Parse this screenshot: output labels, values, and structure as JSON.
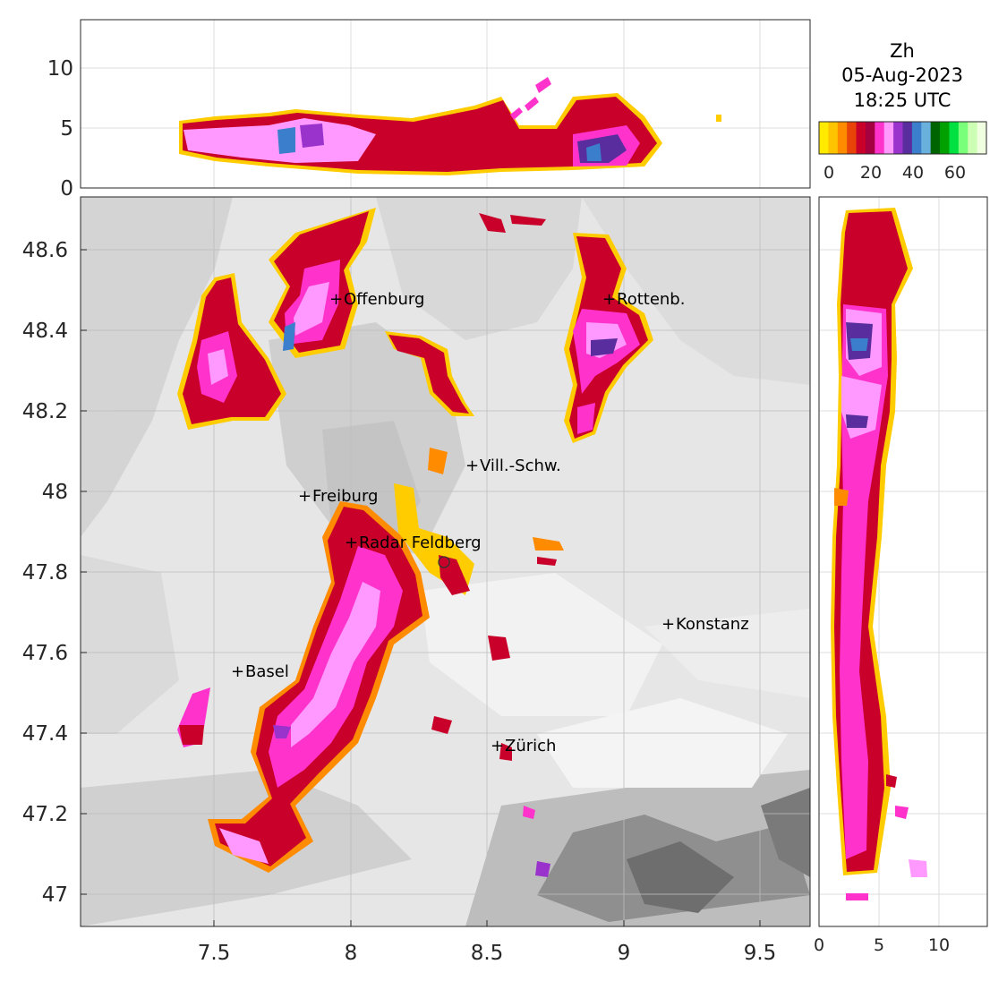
{
  "title": {
    "variable": "Zh",
    "date": "05-Aug-2023",
    "time": "18:25 UTC"
  },
  "colorbar": {
    "colors": [
      "#ffea00",
      "#ffc400",
      "#ff8c00",
      "#e8440a",
      "#c8002a",
      "#a50040",
      "#ff33cc",
      "#ff99ff",
      "#9933cc",
      "#5a2d9e",
      "#3a7ecc",
      "#6ab0dc",
      "#006400",
      "#00a000",
      "#00e040",
      "#7aff7a",
      "#ccffb3",
      "#f0ffe0"
    ],
    "ticks": [
      "0",
      "20",
      "40",
      "60"
    ]
  },
  "map_axes": {
    "x_ticks": [
      "7.5",
      "8",
      "8.5",
      "9",
      "9.5"
    ],
    "y_ticks": [
      "48.6",
      "48.4",
      "48.2",
      "48",
      "47.8",
      "47.6",
      "47.4",
      "47.2",
      "47"
    ]
  },
  "top_panel": {
    "y_ticks": [
      "10",
      "5",
      "0"
    ]
  },
  "right_panel": {
    "x_ticks": [
      "0",
      "5",
      "10"
    ]
  },
  "cities": [
    {
      "name": "Offenburg"
    },
    {
      "name": "Rottenb."
    },
    {
      "name": "Vill.-Schw."
    },
    {
      "name": "Freiburg"
    },
    {
      "name": "Radar Feldberg"
    },
    {
      "name": "Konstanz"
    },
    {
      "name": "Basel"
    },
    {
      "name": "Zürich"
    }
  ]
}
